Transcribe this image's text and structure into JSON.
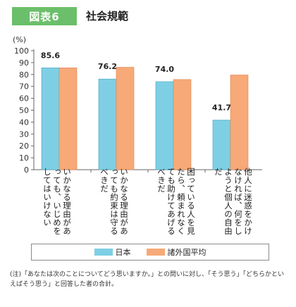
{
  "header": {
    "badge": "図表6",
    "title": "社会規範"
  },
  "colors": {
    "japan": "#7ecfe4",
    "avg": "#f7a977",
    "badge": "#6cbf6a"
  },
  "chart_data": {
    "type": "bar",
    "ylabel": "(%)",
    "ylim": [
      0,
      100
    ],
    "yticks": [
      0,
      10,
      20,
      30,
      40,
      50,
      60,
      70,
      80,
      90,
      100
    ],
    "categories": [
      "いかなる理由があっても、いじめをしてはいけない",
      "いかなる理由があっても約束は守るべきだ",
      "困っている人を見たら、頼まれなくても助けてあげるべきだ",
      "他人に迷惑をかけなければ、何をしようと個人の自由だ"
    ],
    "series": [
      {
        "name": "日本",
        "values": [
          85.6,
          76.2,
          74.0,
          41.7
        ]
      },
      {
        "name": "諸外国平均",
        "values": [
          85.6,
          86.1,
          75.8,
          79.6
        ]
      }
    ],
    "data_labels": [
      "85.6",
      "76.2",
      "74.0",
      "41.7"
    ]
  },
  "legend": {
    "japan": "日本",
    "avg": "諸外国平均"
  },
  "note": "(注)「あなたは次のことについてどう思いますか。」との問いに対し、「そう思う」「どちらかといえばそう思う」と回答した者の合計。"
}
